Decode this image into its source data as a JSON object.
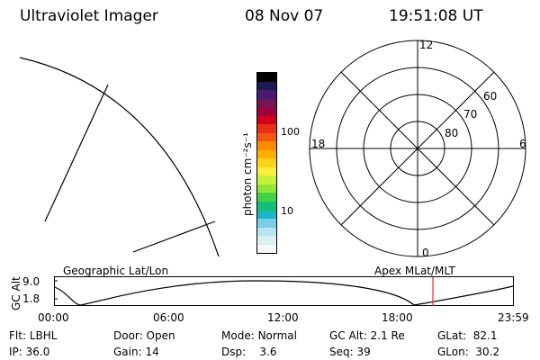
{
  "header": {
    "instrument": "Ultraviolet Imager",
    "date": "08 Nov 07",
    "time": "19:51:08 UT"
  },
  "colorbar": {
    "unit_label": "photon cm⁻²s⁻¹",
    "ticks": [
      "100",
      "10"
    ],
    "colors": [
      "#000000",
      "#1a1a55",
      "#4a1a70",
      "#7a1450",
      "#a0003a",
      "#d0001a",
      "#e83018",
      "#f25a10",
      "#f78c00",
      "#fbb000",
      "#ffd21a",
      "#f5f03a",
      "#c8f03a",
      "#8ce63c",
      "#40d24a",
      "#10c07a",
      "#20b4c8",
      "#78d0e6",
      "#b8e6f0",
      "#dcf0f2",
      "#f4f8f8"
    ]
  },
  "polar_plot": {
    "mlt_labels": {
      "top": "12",
      "right": "6",
      "bottom": "0",
      "left": "18"
    },
    "lat_labels": [
      "60",
      "70",
      "80"
    ]
  },
  "altitude_panel": {
    "left_label": "Geographic Lat/Lon",
    "right_label": "Apex MLat/MLT",
    "ylabel": "GC Alt",
    "yticks": [
      "9.0",
      "1.8"
    ],
    "xticks": [
      "00:00",
      "06:00",
      "12:00",
      "18:00",
      "23:59"
    ],
    "marker_color": "#e0303a"
  },
  "status": {
    "row1": [
      {
        "label": "Flt:",
        "value": "LBHL"
      },
      {
        "label": "Door:",
        "value": "Open"
      },
      {
        "label": "Mode:",
        "value": "Normal"
      },
      {
        "label": "GC Alt:",
        "value": "2.1 Re"
      },
      {
        "label": "GLat:",
        "value": "82.1"
      }
    ],
    "row2": [
      {
        "label": "IP:",
        "value": "36.0"
      },
      {
        "label": "Gain:",
        "value": "14"
      },
      {
        "label": "Dsp:",
        "value": "3.6"
      },
      {
        "label": "Seq:",
        "value": "39"
      },
      {
        "label": "GLon:",
        "value": "30.2"
      }
    ]
  }
}
